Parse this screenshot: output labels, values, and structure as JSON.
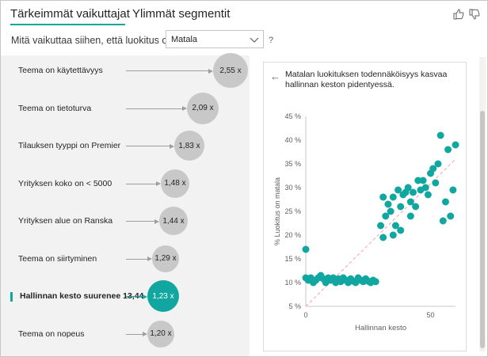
{
  "tabs": {
    "key_influencers": "Tärkeimmät vaikuttajat",
    "top_segments": "Ylimmät segmentit"
  },
  "question": {
    "text": "Mitä vaikuttaa siihen, että luokitus on",
    "selected_value": "Matala",
    "help": "?"
  },
  "influencers": [
    {
      "label": "Teema on käytettävyys",
      "value": "2,55 x",
      "selected": false
    },
    {
      "label": "Teema on tietoturva",
      "value": "2,09 x",
      "selected": false
    },
    {
      "label": "Tilauksen tyyppi on Premier",
      "value": "1,83 x",
      "selected": false
    },
    {
      "label": "Yrityksen koko on < 5000",
      "value": "1,48 x",
      "selected": false
    },
    {
      "label": "Yrityksen alue on Ranska",
      "value": "1,44 x",
      "selected": false
    },
    {
      "label": "Teema on siirtyminen",
      "value": "1,29 x",
      "selected": false
    },
    {
      "label": "Hallinnan kesto suurenee 13,44",
      "value": "1,23 x",
      "selected": true
    },
    {
      "label": "Teema on nopeus",
      "value": "1,20 x",
      "selected": false
    }
  ],
  "detail": {
    "description": "Matalan luokituksen todennäköisyys kasvaa hallinnan keston pidentyessä."
  },
  "colors": {
    "accent": "#11a7a0",
    "bubble_gray": "#c8c8c8",
    "trend_line": "#f4a1ad"
  },
  "icons": {
    "thumbs_up": "thumbs-up-icon",
    "thumbs_down": "thumbs-down-icon",
    "back": "back-arrow-icon",
    "dropdown": "chevron-down-icon"
  },
  "chart_data": {
    "type": "scatter",
    "xlabel": "Hallinnan kesto",
    "ylabel": "% Luokitus on matala",
    "xlim": [
      0,
      60
    ],
    "ylim": [
      5,
      45
    ],
    "x_ticks": [
      "0",
      "50"
    ],
    "y_ticks": [
      "5 %",
      "10 %",
      "15 %",
      "20 %",
      "25 %",
      "30 %",
      "35 %",
      "40 %",
      "45 %"
    ],
    "grid": false,
    "trend_line": {
      "x": [
        0,
        60
      ],
      "y": [
        5,
        36
      ]
    },
    "points": [
      {
        "x": 0,
        "y": 17
      },
      {
        "x": 0,
        "y": 11
      },
      {
        "x": 1,
        "y": 10.5
      },
      {
        "x": 2,
        "y": 11
      },
      {
        "x": 3,
        "y": 10
      },
      {
        "x": 4,
        "y": 10.5
      },
      {
        "x": 5,
        "y": 11
      },
      {
        "x": 6,
        "y": 11.5
      },
      {
        "x": 7,
        "y": 10.8
      },
      {
        "x": 8,
        "y": 10
      },
      {
        "x": 9,
        "y": 11
      },
      {
        "x": 10,
        "y": 10.5
      },
      {
        "x": 11,
        "y": 11
      },
      {
        "x": 12,
        "y": 10
      },
      {
        "x": 13,
        "y": 10.8
      },
      {
        "x": 14,
        "y": 10.2
      },
      {
        "x": 15,
        "y": 11
      },
      {
        "x": 16,
        "y": 10.5
      },
      {
        "x": 17,
        "y": 10
      },
      {
        "x": 18,
        "y": 10.8
      },
      {
        "x": 19,
        "y": 10.3
      },
      {
        "x": 20,
        "y": 10
      },
      {
        "x": 21,
        "y": 11
      },
      {
        "x": 22,
        "y": 10.5
      },
      {
        "x": 23,
        "y": 10.2
      },
      {
        "x": 24,
        "y": 10.8
      },
      {
        "x": 25,
        "y": 10.3
      },
      {
        "x": 26,
        "y": 10
      },
      {
        "x": 27,
        "y": 10.5
      },
      {
        "x": 28,
        "y": 10.2
      },
      {
        "x": 30,
        "y": 22
      },
      {
        "x": 31,
        "y": 19.5
      },
      {
        "x": 31,
        "y": 28
      },
      {
        "x": 32,
        "y": 24
      },
      {
        "x": 33,
        "y": 26.5
      },
      {
        "x": 34,
        "y": 25
      },
      {
        "x": 35,
        "y": 28
      },
      {
        "x": 35,
        "y": 20
      },
      {
        "x": 36,
        "y": 22
      },
      {
        "x": 37,
        "y": 29.5
      },
      {
        "x": 38,
        "y": 21
      },
      {
        "x": 38,
        "y": 26
      },
      {
        "x": 39,
        "y": 28.5
      },
      {
        "x": 40,
        "y": 29
      },
      {
        "x": 41,
        "y": 30
      },
      {
        "x": 42,
        "y": 27
      },
      {
        "x": 42,
        "y": 24
      },
      {
        "x": 43,
        "y": 29
      },
      {
        "x": 44,
        "y": 26
      },
      {
        "x": 45,
        "y": 31.5
      },
      {
        "x": 46,
        "y": 29.5
      },
      {
        "x": 47,
        "y": 31.5
      },
      {
        "x": 48,
        "y": 30
      },
      {
        "x": 49,
        "y": 28.5
      },
      {
        "x": 50,
        "y": 33
      },
      {
        "x": 51,
        "y": 34
      },
      {
        "x": 52,
        "y": 31
      },
      {
        "x": 53,
        "y": 35
      },
      {
        "x": 54,
        "y": 41
      },
      {
        "x": 55,
        "y": 23
      },
      {
        "x": 56,
        "y": 27
      },
      {
        "x": 57,
        "y": 38
      },
      {
        "x": 58,
        "y": 24
      },
      {
        "x": 59,
        "y": 29.5
      },
      {
        "x": 60,
        "y": 39
      }
    ]
  }
}
